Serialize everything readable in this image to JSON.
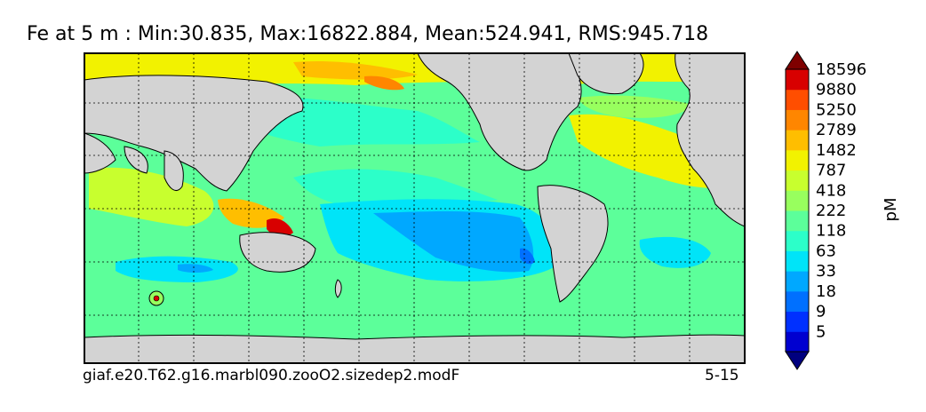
{
  "title": "Fe at 5 m : Min:30.835, Max:16822.884, Mean:524.941, RMS:945.718",
  "footer": {
    "case_name": "giaf.e20.T62.g16.marbl090.zooO2.sizedep2.modF",
    "period": "5-15"
  },
  "colors": {
    "land": "#d3d3d3",
    "grid": "#000000"
  },
  "chart_data": {
    "type": "heatmap",
    "variable": "Fe",
    "depth": "5 m",
    "stats": {
      "min": 30.835,
      "max": 16822.884,
      "mean": 524.941,
      "rms": 945.718
    },
    "colorbar": {
      "unit": "pM",
      "ticks": [
        5,
        9,
        18,
        33,
        63,
        118,
        222,
        418,
        787,
        1482,
        2789,
        5250,
        9880,
        18596
      ],
      "colors": [
        "#00007f",
        "#0000d0",
        "#0030ff",
        "#0070ff",
        "#00a8ff",
        "#00e4f8",
        "#2cffc9",
        "#5cff9a",
        "#98ff5e",
        "#c8ff2e",
        "#f2f200",
        "#ffbe00",
        "#ff8600",
        "#ff4e00",
        "#d80000",
        "#7f0000"
      ],
      "extend": "both"
    }
  }
}
